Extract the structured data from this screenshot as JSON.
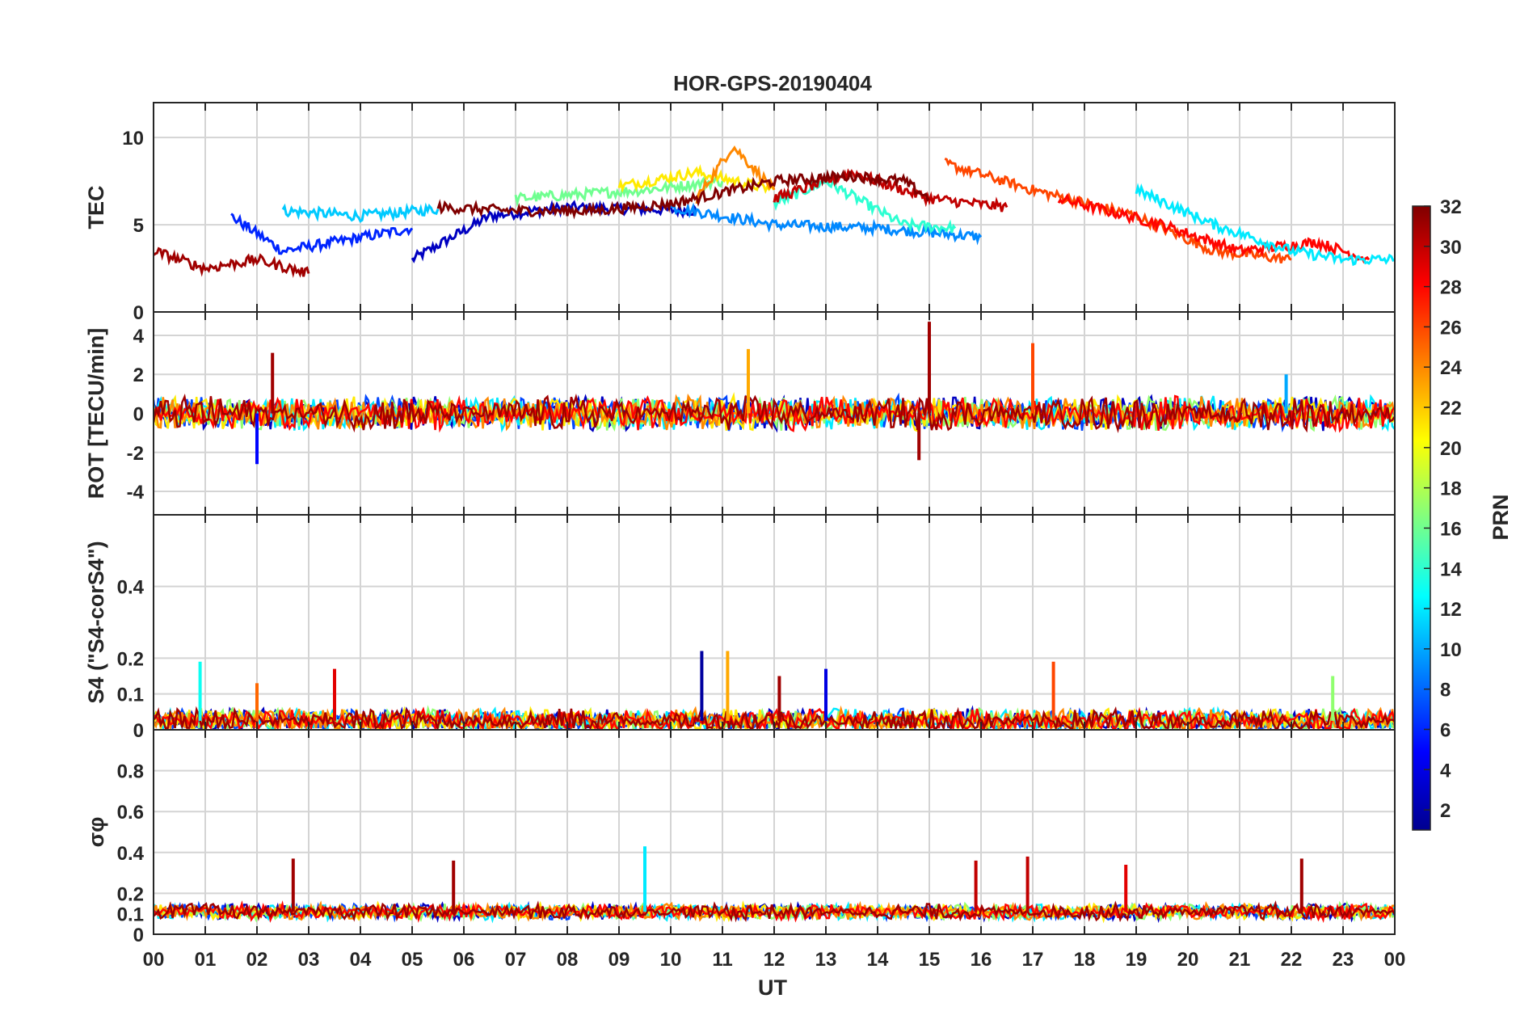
{
  "chart_data": {
    "type": "line",
    "title": "HOR-GPS-20190404",
    "xlabel": "UT",
    "x_tick_labels": [
      "00",
      "01",
      "02",
      "03",
      "04",
      "05",
      "06",
      "07",
      "08",
      "09",
      "10",
      "11",
      "12",
      "13",
      "14",
      "15",
      "16",
      "17",
      "18",
      "19",
      "20",
      "21",
      "22",
      "23",
      "00"
    ],
    "x_range_hours": [
      0,
      24
    ],
    "grid": true,
    "colorbar": {
      "label": "PRN",
      "range": [
        1,
        32
      ],
      "tick_labels": [
        "2",
        "4",
        "6",
        "8",
        "10",
        "12",
        "14",
        "16",
        "18",
        "20",
        "22",
        "24",
        "26",
        "28",
        "30",
        "32"
      ],
      "colormap": "jet",
      "placement": "right"
    },
    "panels": [
      {
        "ylabel": "TEC",
        "ylim": [
          0,
          12
        ],
        "y_tick_labels": [
          "0",
          "5",
          "10"
        ],
        "series": [
          {
            "prn": 3,
            "x": [
              5.0,
              6.5,
              8.0,
              10.5
            ],
            "y": [
              3.0,
              5.5,
              6.0,
              5.8
            ]
          },
          {
            "prn": 6,
            "x": [
              1.5,
              2.5,
              3.5,
              5.0
            ],
            "y": [
              5.5,
              3.5,
              4.0,
              4.8
            ]
          },
          {
            "prn": 11,
            "x": [
              2.5,
              4.0,
              5.5
            ],
            "y": [
              5.8,
              5.5,
              5.9
            ]
          },
          {
            "prn": 9,
            "x": [
              10.0,
              12.0,
              14.0,
              16.0
            ],
            "y": [
              6.0,
              5.0,
              4.8,
              4.3
            ]
          },
          {
            "prn": 14,
            "x": [
              12.0,
              13.0,
              14.5,
              15.5
            ],
            "y": [
              6.2,
              7.5,
              5.0,
              4.8
            ]
          },
          {
            "prn": 16,
            "x": [
              7.0,
              9.5,
              11.0
            ],
            "y": [
              6.5,
              7.0,
              7.5
            ]
          },
          {
            "prn": 21,
            "x": [
              9.0,
              10.5,
              12.0
            ],
            "y": [
              7.2,
              8.0,
              7.0
            ]
          },
          {
            "prn": 24,
            "x": [
              10.5,
              11.2,
              12.0
            ],
            "y": [
              6.5,
              9.5,
              7.0
            ]
          },
          {
            "prn": 26,
            "x": [
              15.3,
              17.0,
              19.0,
              20.5,
              22.0
            ],
            "y": [
              8.5,
              7.0,
              5.5,
              3.5,
              3.0
            ]
          },
          {
            "prn": 28,
            "x": [
              17.5,
              19.5,
              21.0,
              22.5,
              23.5
            ],
            "y": [
              6.5,
              5.0,
              3.5,
              4.0,
              3.0
            ]
          },
          {
            "prn": 30,
            "x": [
              12.0,
              13.5,
              15.0,
              16.5
            ],
            "y": [
              6.5,
              8.0,
              6.5,
              6.0
            ]
          },
          {
            "prn": 32,
            "x": [
              5.5,
              7.0,
              8.5,
              10.0,
              12.0,
              13.5,
              14.5,
              15.0
            ],
            "y": [
              6.0,
              5.8,
              5.8,
              6.2,
              7.5,
              7.8,
              7.5,
              6.5
            ]
          },
          {
            "prn": 12,
            "x": [
              19.0,
              20.5,
              22.0,
              23.0,
              24.0
            ],
            "y": [
              7.0,
              5.0,
              3.5,
              3.0,
              3.0
            ]
          },
          {
            "prn": 31,
            "x": [
              0.0,
              1.0,
              2.0,
              3.0
            ],
            "y": [
              3.5,
              2.5,
              3.0,
              2.2
            ]
          }
        ]
      },
      {
        "ylabel": "ROT [TECU/min]",
        "ylim": [
          -5.2,
          5.2
        ],
        "y_tick_labels": [
          "-4",
          "-2",
          "0",
          "2",
          "4"
        ],
        "spikes": [
          {
            "prn": 31,
            "x": 2.3,
            "y": 3.1
          },
          {
            "prn": 31,
            "x": 15.0,
            "y": 4.7
          },
          {
            "prn": 26,
            "x": 17.0,
            "y": 3.6
          },
          {
            "prn": 23,
            "x": 11.5,
            "y": 3.3
          },
          {
            "prn": 10,
            "x": 21.9,
            "y": 2.0
          },
          {
            "prn": 5,
            "x": 2.0,
            "y": -2.6
          },
          {
            "prn": 31,
            "x": 14.8,
            "y": -2.4
          }
        ]
      },
      {
        "ylabel": "S4 (\"S4-corS4\")",
        "ylim": [
          0,
          0.6
        ],
        "y_tick_labels": [
          "0",
          "0.1",
          "0.2",
          "0.4"
        ],
        "spikes": [
          {
            "prn": 13,
            "x": 0.9,
            "y": 0.19
          },
          {
            "prn": 25,
            "x": 2.0,
            "y": 0.13
          },
          {
            "prn": 29,
            "x": 3.5,
            "y": 0.17
          },
          {
            "prn": 2,
            "x": 10.6,
            "y": 0.22
          },
          {
            "prn": 23,
            "x": 11.1,
            "y": 0.22
          },
          {
            "prn": 31,
            "x": 12.1,
            "y": 0.15
          },
          {
            "prn": 4,
            "x": 13.0,
            "y": 0.17
          },
          {
            "prn": 26,
            "x": 17.4,
            "y": 0.19
          },
          {
            "prn": 17,
            "x": 22.8,
            "y": 0.15
          }
        ]
      },
      {
        "ylabel": "σφ",
        "ylim": [
          0,
          1
        ],
        "y_tick_labels": [
          "0",
          "0.1",
          "0.2",
          "0.4",
          "0.6",
          "0.8"
        ],
        "spikes": [
          {
            "prn": 31,
            "x": 2.7,
            "y": 0.37
          },
          {
            "prn": 31,
            "x": 5.8,
            "y": 0.36
          },
          {
            "prn": 12,
            "x": 9.5,
            "y": 0.43
          },
          {
            "prn": 30,
            "x": 15.9,
            "y": 0.36
          },
          {
            "prn": 30,
            "x": 16.9,
            "y": 0.38
          },
          {
            "prn": 29,
            "x": 18.8,
            "y": 0.34
          },
          {
            "prn": 31,
            "x": 22.2,
            "y": 0.37
          }
        ]
      }
    ]
  }
}
